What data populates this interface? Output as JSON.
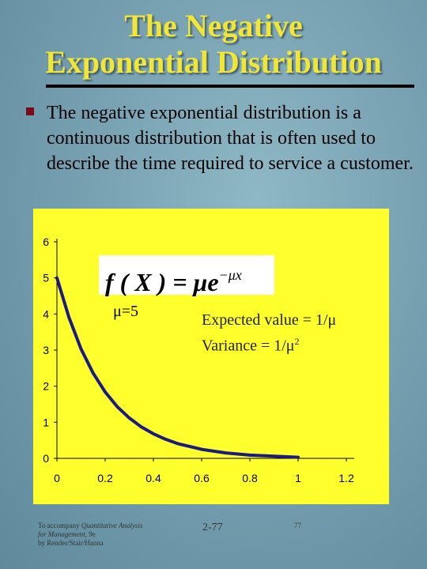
{
  "title": {
    "line1": "The Negative",
    "line2": "Exponential Distribution"
  },
  "bullet": {
    "text": "The negative exponential distribution is a continuous distribution that is often used to describe the time required to service a customer."
  },
  "formula": {
    "lhs": "f ( X ) = ",
    "mu_e": "μe",
    "exponent": "−μx"
  },
  "annotations": {
    "mu_label": "μ=5",
    "expected_value": "Expected value = 1/μ",
    "variance_prefix": "Variance = 1/μ",
    "variance_exp": "2"
  },
  "footer": {
    "line1_prefix": "To accompany ",
    "line1_italic": "Quantitative Analysis",
    "line2_italic": "for Management",
    "line2_suffix": ", 9e",
    "line3": "by Render/Stair/Hanna",
    "slide_number": "2-77",
    "slide_number_small": "77"
  },
  "colors": {
    "title": "#f0e63a",
    "chart_background": "#ffff2e",
    "curve": "#1a1a80",
    "bullet": "#7a0a1a"
  },
  "chart_data": {
    "type": "line",
    "series": [
      {
        "x": [
          0,
          0.05,
          0.1,
          0.15,
          0.2,
          0.25,
          0.3,
          0.35,
          0.4,
          0.45,
          0.5,
          0.6,
          0.7,
          0.8,
          0.9,
          1.0
        ],
        "values": [
          5.0,
          3.9,
          3.03,
          2.36,
          1.84,
          1.43,
          1.12,
          0.87,
          0.68,
          0.53,
          0.41,
          0.25,
          0.15,
          0.09,
          0.06,
          0.03
        ]
      }
    ],
    "x_ticks": [
      "0",
      "0.2",
      "0.4",
      "0.6",
      "0.8",
      "1",
      "1.2"
    ],
    "y_ticks": [
      "0",
      "1",
      "2",
      "3",
      "4",
      "5",
      "6"
    ],
    "xlim": [
      0,
      1.2
    ],
    "ylim": [
      0,
      6
    ],
    "grid": false,
    "title": "",
    "xlabel": "",
    "ylabel": ""
  }
}
